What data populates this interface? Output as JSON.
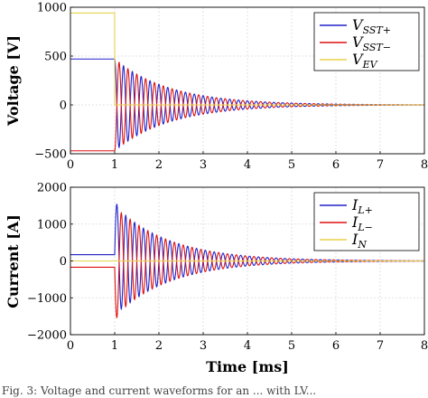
{
  "caption_fragment": "Fig. 3: Voltage and current waveforms for an ... with LV...",
  "chart_data": [
    {
      "type": "line",
      "ylabel": "Voltage [V]",
      "xlabel": "",
      "xlim": [
        0,
        8
      ],
      "ylim": [
        -500,
        1000
      ],
      "xticks": [
        "0",
        "1",
        "2",
        "3",
        "4",
        "5",
        "6",
        "7",
        "8"
      ],
      "yticks": [
        "−500",
        "0",
        "500",
        "1000"
      ],
      "ytick_values": [
        -500,
        0,
        500,
        1000
      ],
      "grid": true,
      "legend_position": "top-right",
      "legend": [
        {
          "main": "V",
          "sub": "SST+",
          "color": "#2222cc"
        },
        {
          "main": "V",
          "sub": "SST−",
          "color": "#dd1111"
        },
        {
          "main": "V",
          "sub": "EV",
          "color": "#e8d24a"
        }
      ],
      "series": [
        {
          "name": "V_SST+",
          "color": "#2222cc",
          "pre_value": 470,
          "oscillation": {
            "start_ms": 1.0,
            "amplitude": 480,
            "period_ms": 0.2,
            "decay_per_ms": 0.8,
            "sign": 1
          }
        },
        {
          "name": "V_SST−",
          "color": "#dd1111",
          "pre_value": -470,
          "oscillation": {
            "start_ms": 1.0,
            "amplitude": 480,
            "period_ms": 0.2,
            "decay_per_ms": 0.8,
            "sign": -1
          }
        },
        {
          "name": "V_EV",
          "color": "#e8d24a",
          "pre_value": 940,
          "post_value": 0,
          "step_ms": 1.0
        }
      ]
    },
    {
      "type": "line",
      "ylabel": "Current [A]",
      "xlabel": "Time [ms]",
      "xlim": [
        0,
        8
      ],
      "ylim": [
        -2000,
        2000
      ],
      "xticks": [
        "0",
        "1",
        "2",
        "3",
        "4",
        "5",
        "6",
        "7",
        "8"
      ],
      "yticks": [
        "−2000",
        "−1000",
        "0",
        "1000",
        "2000"
      ],
      "ytick_values": [
        -2000,
        -1000,
        0,
        1000,
        2000
      ],
      "grid": true,
      "legend_position": "top-right",
      "legend": [
        {
          "main": "I",
          "sub": "L+",
          "color": "#2222cc"
        },
        {
          "main": "I",
          "sub": "L−",
          "color": "#dd1111"
        },
        {
          "main": "I",
          "sub": "N",
          "color": "#e8d24a"
        }
      ],
      "series": [
        {
          "name": "I_L+",
          "color": "#2222cc",
          "pre_value": 170,
          "oscillation": {
            "start_ms": 1.0,
            "amplitude": 1500,
            "period_ms": 0.2,
            "decay_per_ms": 0.8,
            "sign": 1,
            "shape": "sine"
          }
        },
        {
          "name": "I_L−",
          "color": "#dd1111",
          "pre_value": -170,
          "oscillation": {
            "start_ms": 1.0,
            "amplitude": 1500,
            "period_ms": 0.2,
            "decay_per_ms": 0.8,
            "sign": -1,
            "shape": "sine"
          }
        },
        {
          "name": "I_N",
          "color": "#e8d24a",
          "pre_value": 0,
          "post_value": 0
        }
      ]
    }
  ]
}
